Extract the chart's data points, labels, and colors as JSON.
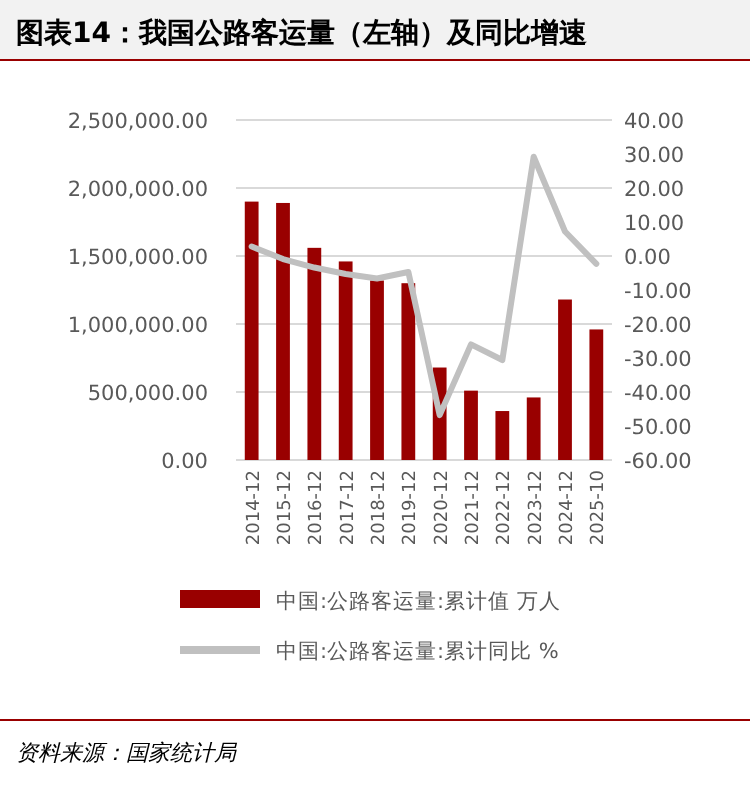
{
  "chart_data": {
    "type": "bar",
    "title": "图表14：我国公路客运量（左轴）及同比增速",
    "categories": [
      "2014-12",
      "2015-12",
      "2016-12",
      "2017-12",
      "2018-12",
      "2019-12",
      "2020-12",
      "2021-12",
      "2022-12",
      "2023-12",
      "2024-12",
      "2025-10"
    ],
    "series": [
      {
        "name": "中国:公路客运量:累计值 万人",
        "color": "#990000",
        "values": [
          1900000,
          1890000,
          1560000,
          1460000,
          1320000,
          1300000,
          680000,
          510000,
          360000,
          460000,
          1180000,
          960000
        ]
      },
      {
        "name": "中国:公路客运量:累计同比 %",
        "type": "line",
        "axis": "y2",
        "color": "#c0c0c0",
        "values": [
          2.8,
          -0.9,
          -3.4,
          -5.3,
          -6.6,
          -4.7,
          -46.8,
          -26.0,
          -30.6,
          29.2,
          7.2,
          -2.3
        ]
      }
    ],
    "ylim": [
      0,
      2500000
    ],
    "yticks": [
      {
        "value": 0,
        "label": "0.00"
      },
      {
        "value": 500000,
        "label": "500,000.00"
      },
      {
        "value": 1000000,
        "label": "1,000,000.00"
      },
      {
        "value": 1500000,
        "label": "1,500,000.00"
      },
      {
        "value": 2000000,
        "label": "2,000,000.00"
      },
      {
        "value": 2500000,
        "label": "2,500,000.00"
      }
    ],
    "y2lim": [
      -60,
      40
    ],
    "y2ticks": [
      {
        "value": -60,
        "label": "-60.00"
      },
      {
        "value": -50,
        "label": "-50.00"
      },
      {
        "value": -40,
        "label": "-40.00"
      },
      {
        "value": -30,
        "label": "-30.00"
      },
      {
        "value": -20,
        "label": "-20.00"
      },
      {
        "value": -10,
        "label": "-10.00"
      },
      {
        "value": 0,
        "label": "0.00"
      },
      {
        "value": 10,
        "label": "10.00"
      },
      {
        "value": 20,
        "label": "20.00"
      },
      {
        "value": 30,
        "label": "30.00"
      },
      {
        "value": 40,
        "label": "40.00"
      }
    ],
    "grid": "y",
    "legend": "bottom",
    "annotations": [
      "资料来源：国家统计局"
    ]
  }
}
